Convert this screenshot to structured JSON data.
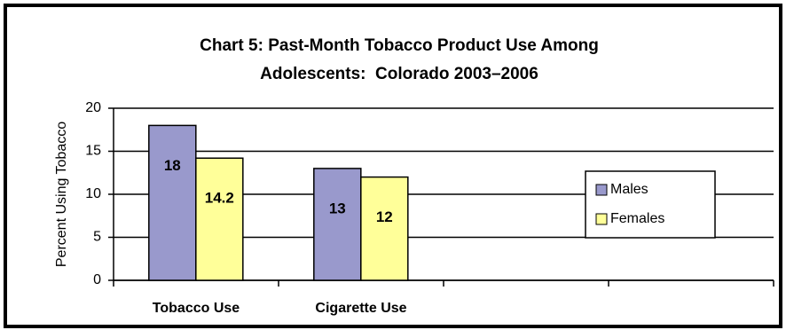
{
  "chart_data": {
    "type": "bar",
    "title": [
      "Chart 5: Past-Month Tobacco Product Use Among",
      "Adolescents:  Colorado 2003–2006"
    ],
    "y_label": "Percent Using Tobacco",
    "categories": [
      "Tobacco Use",
      "Cigarette Use",
      null,
      null
    ],
    "series": [
      {
        "name": "Males",
        "color": "#9999cc",
        "values": [
          18,
          13,
          null,
          null
        ]
      },
      {
        "name": "Females",
        "color": "#ffff99",
        "values": [
          14.2,
          12,
          null,
          null
        ]
      }
    ],
    "ylim": [
      0,
      20
    ],
    "yticks": [
      0,
      5,
      10,
      15,
      20
    ],
    "grid": true,
    "legend": "right"
  }
}
